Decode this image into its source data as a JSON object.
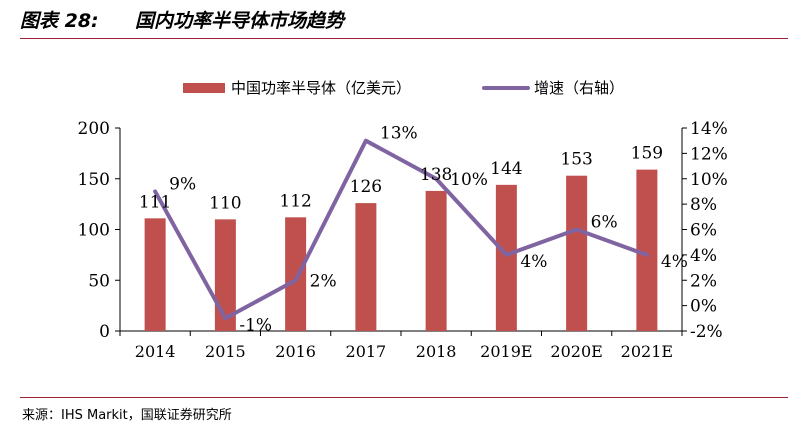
{
  "header": {
    "label": "图表 28:",
    "title": "国内功率半导体市场趋势"
  },
  "source": "来源：IHS Markit，国联证券研究所",
  "colors": {
    "bar": "#c0504d",
    "line": "#8064a2",
    "rule": "#9b2335",
    "axis": "#000000"
  },
  "chart_data": {
    "type": "bar",
    "categories": [
      "2014",
      "2015",
      "2016",
      "2017",
      "2018",
      "2019E",
      "2020E",
      "2021E"
    ],
    "series": [
      {
        "name": "中国功率半导体（亿美元）",
        "type": "bar",
        "axis": "left",
        "values": [
          111,
          110,
          112,
          126,
          138,
          144,
          153,
          159
        ],
        "labels": [
          "111",
          "110",
          "112",
          "126",
          "138",
          "144",
          "153",
          "159"
        ]
      },
      {
        "name": "增速（右轴）",
        "type": "line",
        "axis": "right",
        "values": [
          9,
          -1,
          2,
          13,
          10,
          4,
          6,
          4
        ],
        "labels": [
          "9%",
          "-1%",
          "2%",
          "13%",
          "10%",
          "4%",
          "6%",
          "4%"
        ]
      }
    ],
    "y_left": {
      "range": [
        0,
        200
      ],
      "ticks": [
        0,
        50,
        100,
        150,
        200
      ],
      "tick_labels": [
        "0",
        "50",
        "100",
        "150",
        "200"
      ]
    },
    "y_right": {
      "range": [
        -2,
        14
      ],
      "ticks": [
        -2,
        0,
        2,
        4,
        6,
        8,
        10,
        12,
        14
      ],
      "tick_labels": [
        "-2%",
        "0%",
        "2%",
        "4%",
        "6%",
        "8%",
        "10%",
        "12%",
        "14%"
      ]
    },
    "legend_position": "top-center",
    "grid": false
  }
}
